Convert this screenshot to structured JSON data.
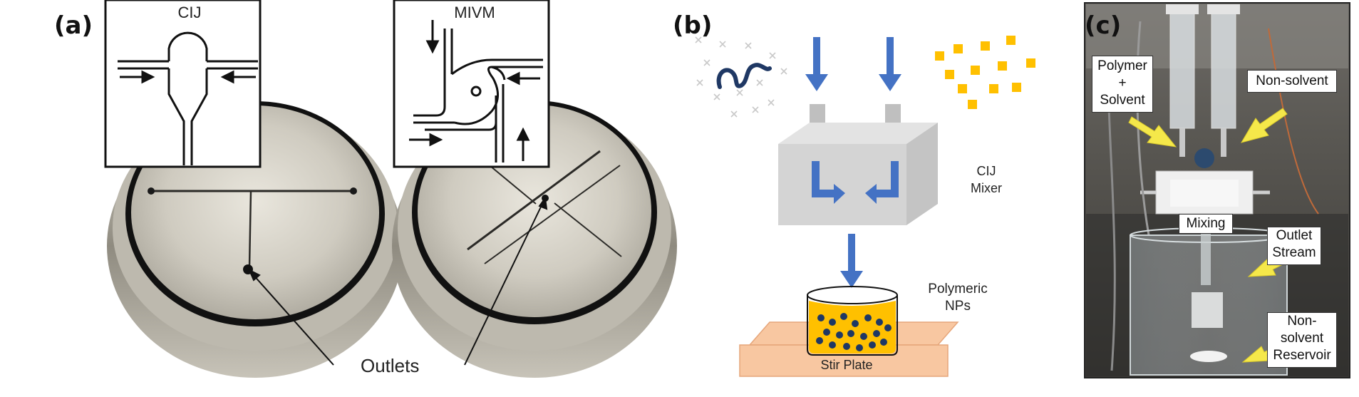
{
  "panels": {
    "a": {
      "label": "(a)",
      "cij_title": "CIJ",
      "mivm_title": "MIVM",
      "outlets_label": "Outlets"
    },
    "b": {
      "label": "(b)",
      "mixer_label_line1": "CIJ",
      "mixer_label_line2": "Mixer",
      "nps_label_line1": "Polymeric",
      "nps_label_line2": "NPs",
      "stir_plate_label": "Stir Plate"
    },
    "c": {
      "label": "(c)",
      "polymer_line1": "Polymer",
      "polymer_line2": "+",
      "polymer_line3": "Solvent",
      "nonsolvent_label": "Non-solvent",
      "mixing_label": "Mixing",
      "outlet_line1": "Outlet",
      "outlet_line2": "Stream",
      "reservoir_line1": "Non-",
      "reservoir_line2": "solvent",
      "reservoir_line3": "Reservoir"
    }
  },
  "colors": {
    "arrow_blue": "#4472c4",
    "particle_yellow": "#ffc000",
    "polymer_navy": "#1f3864",
    "stir_plate": "#f8c7a1",
    "callout_arrow_yellow": "#f5e84a",
    "mixer_grey": "#d0d0d0"
  },
  "icons": {
    "polymer_chain": "polymer-chain-icon",
    "solvent_marks": "x-marks-icon"
  }
}
